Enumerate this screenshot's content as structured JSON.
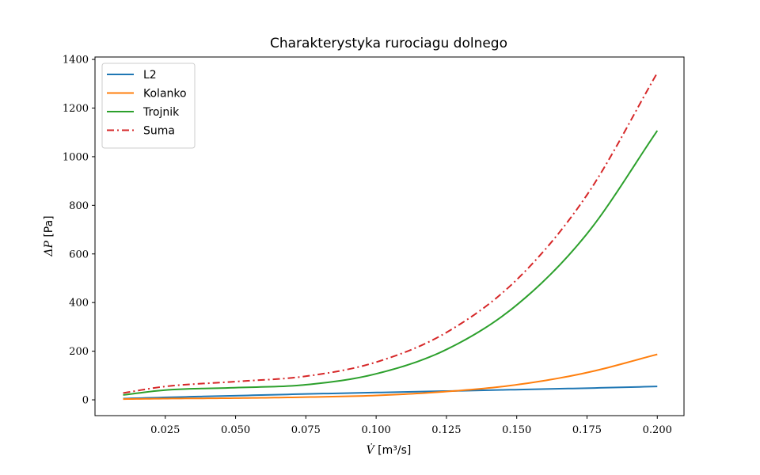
{
  "chart_data": {
    "type": "line",
    "title": "Charakterystyka rurociagu dolnego",
    "xlabel": {
      "symbol": "V̇",
      "unit": " [m³/s]"
    },
    "ylabel": {
      "symbol": "ΔP",
      "unit": " [Pa]"
    },
    "xlim": [
      -0.0,
      0.2095
    ],
    "ylim": [
      -65,
      1410
    ],
    "xticks": [
      0.025,
      0.05,
      0.075,
      0.1,
      0.125,
      0.15,
      0.175,
      0.2
    ],
    "xtick_labels": [
      "0.025",
      "0.050",
      "0.075",
      "0.100",
      "0.125",
      "0.150",
      "0.175",
      "0.200"
    ],
    "yticks": [
      0,
      200,
      400,
      600,
      800,
      1000,
      1200,
      1400
    ],
    "ytick_labels": [
      "0",
      "200",
      "400",
      "600",
      "800",
      "1000",
      "1200",
      "1400"
    ],
    "grid": false,
    "legend_position": "top-left",
    "x": [
      0.01,
      0.025,
      0.05,
      0.075,
      0.1,
      0.125,
      0.15,
      0.175,
      0.2
    ],
    "series": [
      {
        "name": "L2",
        "color": "#1f77b4",
        "dash": "solid",
        "values": [
          5,
          10,
          17,
          24,
          30,
          36,
          42,
          48,
          55
        ]
      },
      {
        "name": "Kolanko",
        "color": "#ff7f0e",
        "dash": "solid",
        "values": [
          3,
          5,
          7,
          11,
          18,
          34,
          62,
          112,
          187
        ]
      },
      {
        "name": "Trojnik",
        "color": "#2ca02c",
        "dash": "solid",
        "values": [
          20,
          40,
          50,
          62,
          107,
          207,
          390,
          683,
          1107
        ]
      },
      {
        "name": "Suma",
        "color": "#d62728",
        "dash": "dashdot",
        "values": [
          28,
          55,
          75,
          97,
          155,
          277,
          494,
          843,
          1345
        ]
      }
    ]
  }
}
